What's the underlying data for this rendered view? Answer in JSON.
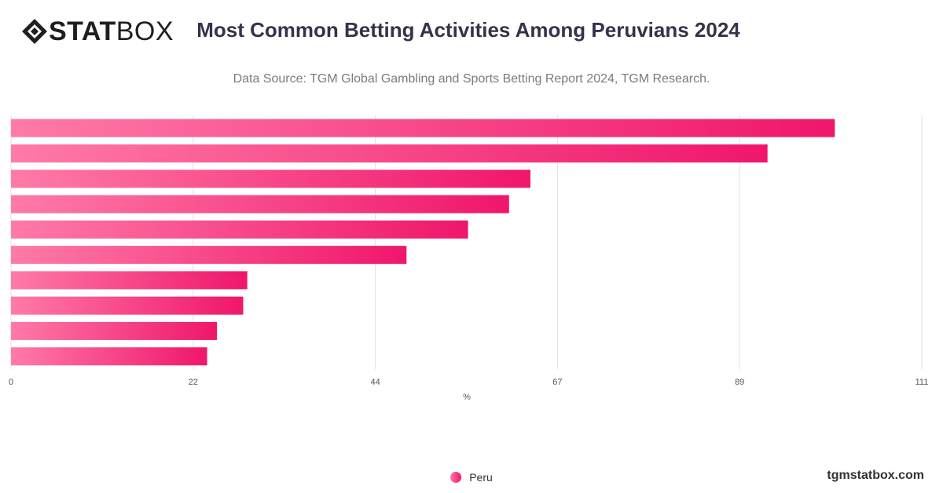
{
  "brand": {
    "bold": "STAT",
    "light": "BOX",
    "logo_icon": "diamond-logo-icon"
  },
  "header": {
    "title": "Most Common Betting Activities Among Peruvians 2024",
    "subtitle": "Data Source: TGM Global Gambling and Sports Betting Report 2024, TGM Research."
  },
  "footer": {
    "watermark": "tgmstatbox.com"
  },
  "chart_data": {
    "type": "bar",
    "orientation": "horizontal",
    "title": "Most Common Betting Activities Among Peruvians 2024",
    "subtitle": "Data Source: TGM Global Gambling and Sports Betting Report 2024, TGM Research.",
    "xlabel": "%",
    "ylabel": "",
    "xlim": [
      0,
      111
    ],
    "x_ticks": [
      "0",
      "22",
      "44",
      "67",
      "89",
      "111"
    ],
    "x_tick_values": [
      0,
      22.2,
      44.4,
      66.6,
      88.8,
      111
    ],
    "grid": true,
    "legend_position": "bottom-center",
    "series": [
      {
        "name": "Peru",
        "values": [
          100.4,
          92.2,
          63.3,
          60.7,
          55.7,
          48.2,
          28.8,
          28.3,
          25.1,
          23.9
        ]
      }
    ],
    "colors": {
      "bar_start": "#ff7aa8",
      "bar_end": "#f0166b",
      "grid": "#e0e0e0",
      "tick_text": "#555555"
    }
  }
}
